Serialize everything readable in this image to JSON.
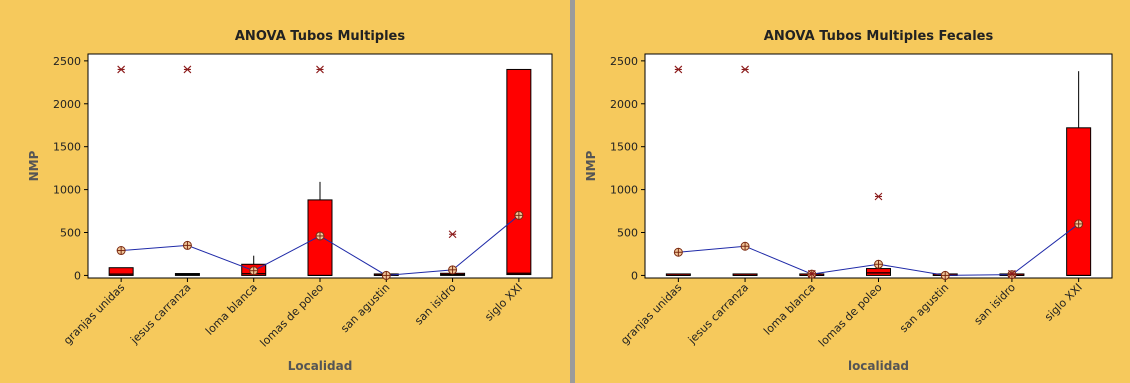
{
  "colors": {
    "background": "#f6c95c",
    "plot_area": "#ffffff",
    "box_fill": "#ff0000",
    "mean_line": "#1f2aa8",
    "outlier": "#8b1a1a",
    "mean_marker_fill": "#f2c79a"
  },
  "chart_data": [
    {
      "type": "box",
      "title": "ANOVA Tubos Multiples",
      "xlabel": "Localidad",
      "ylabel": "NMP",
      "ylim": [
        -30,
        2580
      ],
      "yticks": [
        0,
        500,
        1000,
        1500,
        2000,
        2500
      ],
      "grid": false,
      "categories": [
        "granjas unidas",
        "jesus carranza",
        "loma blanca",
        "lomas de poleo",
        "san agustin",
        "san isidro",
        "siglo XXI"
      ],
      "boxes": [
        {
          "q1": 0,
          "median": 15,
          "q3": 90,
          "whisker_low": 0,
          "whisker_high": 90
        },
        {
          "q1": 0,
          "median": 10,
          "q3": 22,
          "whisker_low": 0,
          "whisker_high": 22
        },
        {
          "q1": 0,
          "median": 20,
          "q3": 130,
          "whisker_low": 0,
          "whisker_high": 230
        },
        {
          "q1": 0,
          "median": 0,
          "q3": 880,
          "whisker_low": 0,
          "whisker_high": 1090
        },
        {
          "q1": 0,
          "median": 2,
          "q3": 4,
          "whisker_low": 0,
          "whisker_high": 4
        },
        {
          "q1": 0,
          "median": 10,
          "q3": 25,
          "whisker_low": 0,
          "whisker_high": 25
        },
        {
          "q1": 10,
          "median": 25,
          "q3": 2400,
          "whisker_low": 10,
          "whisker_high": 2400
        }
      ],
      "means": [
        290,
        350,
        55,
        460,
        0,
        65,
        700
      ],
      "outliers": [
        {
          "category": 0,
          "value": 2400
        },
        {
          "category": 1,
          "value": 2400
        },
        {
          "category": 3,
          "value": 2400
        },
        {
          "category": 5,
          "value": 480
        }
      ]
    },
    {
      "type": "box",
      "title": "ANOVA Tubos Multiples Fecales",
      "xlabel": "localidad",
      "ylabel": "NMP",
      "ylim": [
        -30,
        2580
      ],
      "yticks": [
        0,
        500,
        1000,
        1500,
        2000,
        2500
      ],
      "grid": false,
      "categories": [
        "granjas unidas",
        "jesus carranza",
        "loma blanca",
        "lomas de poleo",
        "san agustin",
        "san isidro",
        "siglo XXI"
      ],
      "boxes": [
        {
          "q1": 0,
          "median": 0,
          "q3": 2,
          "whisker_low": 0,
          "whisker_high": 2
        },
        {
          "q1": 0,
          "median": 0,
          "q3": 2,
          "whisker_low": 0,
          "whisker_high": 2
        },
        {
          "q1": 0,
          "median": 0,
          "q3": 5,
          "whisker_low": 0,
          "whisker_high": 5
        },
        {
          "q1": 0,
          "median": 30,
          "q3": 80,
          "whisker_low": 0,
          "whisker_high": 80
        },
        {
          "q1": 0,
          "median": 0,
          "q3": 2,
          "whisker_low": 0,
          "whisker_high": 2
        },
        {
          "q1": 0,
          "median": 0,
          "q3": 4,
          "whisker_low": 0,
          "whisker_high": 4
        },
        {
          "q1": 0,
          "median": 0,
          "q3": 1720,
          "whisker_low": 0,
          "whisker_high": 2380
        }
      ],
      "means": [
        270,
        340,
        15,
        130,
        0,
        10,
        600
      ],
      "outliers": [
        {
          "category": 0,
          "value": 2400
        },
        {
          "category": 1,
          "value": 2400
        },
        {
          "category": 2,
          "value": 20
        },
        {
          "category": 3,
          "value": 920
        },
        {
          "category": 5,
          "value": 20
        }
      ]
    }
  ]
}
